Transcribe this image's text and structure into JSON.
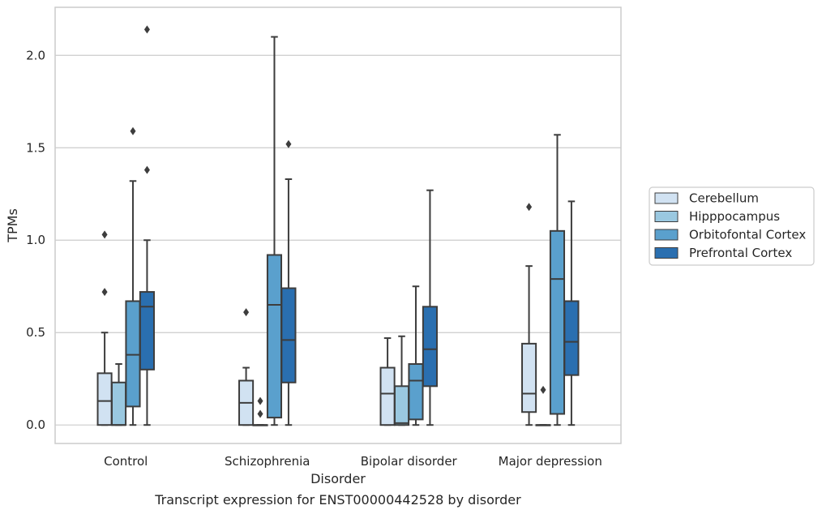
{
  "caption": "Transcript expression for ENST00000442528 by disorder",
  "chart_data": {
    "type": "box",
    "xlabel": "Disorder",
    "ylabel": "TPMs",
    "ylim": [
      -0.1,
      2.26
    ],
    "yticks": [
      0.0,
      0.5,
      1.0,
      1.5,
      2.0
    ],
    "ytick_labels": [
      "0.0",
      "0.5",
      "1.0",
      "1.5",
      "2.0"
    ],
    "grid": true,
    "legend_position": "right",
    "categories": [
      "Control",
      "Schizophrenia",
      "Bipolar disorder",
      "Major depression"
    ],
    "series": [
      {
        "name": "Cerebellum",
        "color": "#d1e2f2",
        "boxes": [
          {
            "q1": 0.0,
            "median": 0.13,
            "q3": 0.28,
            "whisker_low": 0.0,
            "whisker_high": 0.5,
            "outliers": [
              0.72,
              1.03
            ]
          },
          {
            "q1": 0.0,
            "median": 0.12,
            "q3": 0.24,
            "whisker_low": 0.0,
            "whisker_high": 0.31,
            "outliers": [
              0.61
            ]
          },
          {
            "q1": 0.0,
            "median": 0.17,
            "q3": 0.31,
            "whisker_low": 0.0,
            "whisker_high": 0.47,
            "outliers": []
          },
          {
            "q1": 0.07,
            "median": 0.17,
            "q3": 0.44,
            "whisker_low": 0.0,
            "whisker_high": 0.86,
            "outliers": [
              1.18
            ]
          }
        ]
      },
      {
        "name": "Hipppocampus",
        "color": "#9ac8e0",
        "boxes": [
          {
            "q1": 0.0,
            "median": 0.0,
            "q3": 0.23,
            "whisker_low": 0.0,
            "whisker_high": 0.33,
            "outliers": []
          },
          {
            "q1": 0.0,
            "median": 0.0,
            "q3": 0.0,
            "whisker_low": 0.0,
            "whisker_high": 0.0,
            "outliers": [
              0.06,
              0.13
            ]
          },
          {
            "q1": 0.0,
            "median": 0.01,
            "q3": 0.21,
            "whisker_low": 0.0,
            "whisker_high": 0.48,
            "outliers": []
          },
          {
            "q1": 0.0,
            "median": 0.0,
            "q3": 0.0,
            "whisker_low": 0.0,
            "whisker_high": 0.0,
            "outliers": [
              0.19
            ]
          }
        ]
      },
      {
        "name": "Orbitofontal Cortex",
        "color": "#5aa0cd",
        "boxes": [
          {
            "q1": 0.1,
            "median": 0.38,
            "q3": 0.67,
            "whisker_low": 0.0,
            "whisker_high": 1.32,
            "outliers": [
              1.59
            ]
          },
          {
            "q1": 0.04,
            "median": 0.65,
            "q3": 0.92,
            "whisker_low": 0.0,
            "whisker_high": 2.1,
            "outliers": []
          },
          {
            "q1": 0.03,
            "median": 0.24,
            "q3": 0.33,
            "whisker_low": 0.0,
            "whisker_high": 0.75,
            "outliers": []
          },
          {
            "q1": 0.06,
            "median": 0.79,
            "q3": 1.05,
            "whisker_low": 0.0,
            "whisker_high": 1.57,
            "outliers": []
          }
        ]
      },
      {
        "name": "Prefrontal Cortex",
        "color": "#2a6fb0",
        "boxes": [
          {
            "q1": 0.3,
            "median": 0.64,
            "q3": 0.72,
            "whisker_low": 0.0,
            "whisker_high": 1.0,
            "outliers": [
              1.38,
              2.14
            ]
          },
          {
            "q1": 0.23,
            "median": 0.46,
            "q3": 0.74,
            "whisker_low": 0.0,
            "whisker_high": 1.33,
            "outliers": [
              1.52
            ]
          },
          {
            "q1": 0.21,
            "median": 0.41,
            "q3": 0.64,
            "whisker_low": 0.0,
            "whisker_high": 1.27,
            "outliers": []
          },
          {
            "q1": 0.27,
            "median": 0.45,
            "q3": 0.67,
            "whisker_low": 0.0,
            "whisker_high": 1.21,
            "outliers": []
          }
        ]
      }
    ]
  }
}
